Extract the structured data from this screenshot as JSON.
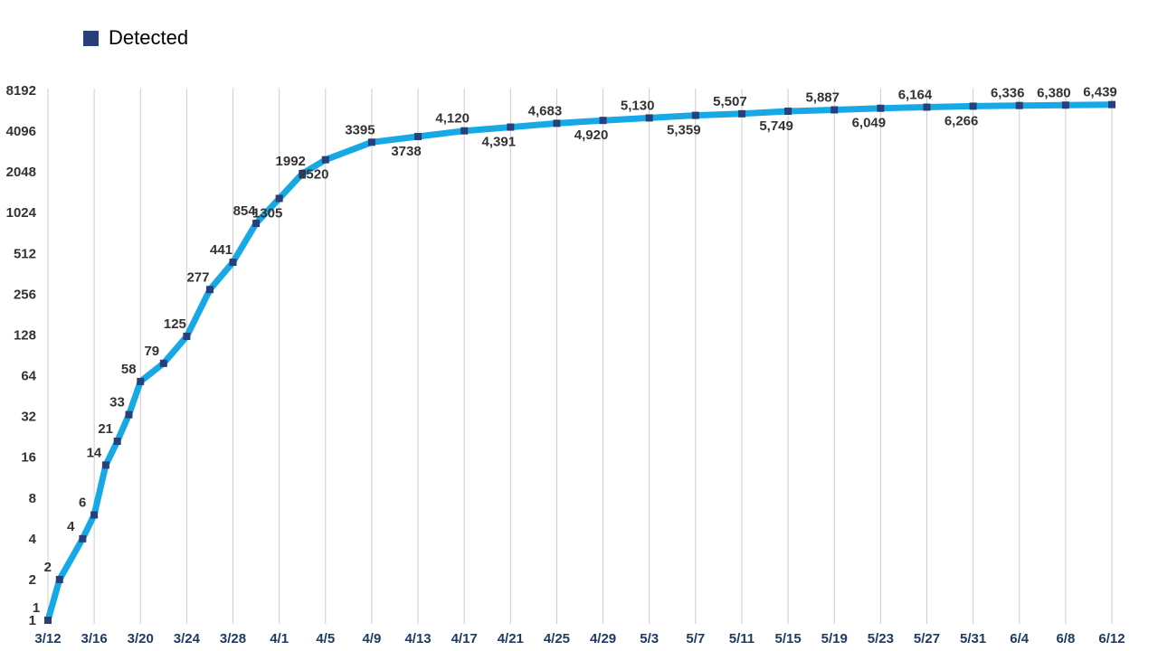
{
  "legend": {
    "label": "Detected"
  },
  "colors": {
    "line": "#17a9e6",
    "marker": "#27407a",
    "grid": "#cccccc",
    "x_tick_text": "#1f3a63",
    "y_tick_text": "#333333",
    "data_label_text": "#333333"
  },
  "chart_data": {
    "type": "line",
    "title": "",
    "xlabel": "",
    "ylabel": "",
    "yscale": "log2",
    "ylim": [
      1,
      8192
    ],
    "yticks": [
      "1",
      "2",
      "4",
      "8",
      "16",
      "32",
      "64",
      "128",
      "256",
      "512",
      "1024",
      "2048",
      "4096",
      "8192"
    ],
    "xticks": [
      "3/12",
      "3/16",
      "3/20",
      "3/24",
      "3/28",
      "4/1",
      "4/5",
      "4/9",
      "4/13",
      "4/17",
      "4/21",
      "4/25",
      "4/29",
      "5/3",
      "5/7",
      "5/11",
      "5/15",
      "5/19",
      "5/23",
      "5/27",
      "5/31",
      "6/4",
      "6/8",
      "6/12"
    ],
    "grid": "vertical",
    "legend_position": "top-left",
    "series": [
      {
        "name": "Detected",
        "points": [
          {
            "x": "3/12",
            "y": 1,
            "label": "1",
            "pos": "above"
          },
          {
            "x": "3/13",
            "y": 2,
            "label": "2",
            "pos": "above"
          },
          {
            "x": "3/15",
            "y": 4,
            "label": "4",
            "pos": "above"
          },
          {
            "x": "3/16",
            "y": 6,
            "label": "6",
            "pos": "above"
          },
          {
            "x": "3/17",
            "y": 14,
            "label": "14",
            "pos": "above"
          },
          {
            "x": "3/18",
            "y": 21,
            "label": "21",
            "pos": "above"
          },
          {
            "x": "3/19",
            "y": 33,
            "label": "33",
            "pos": "above"
          },
          {
            "x": "3/20",
            "y": 58,
            "label": "58",
            "pos": "above"
          },
          {
            "x": "3/22",
            "y": 79,
            "label": "79",
            "pos": "above"
          },
          {
            "x": "3/24",
            "y": 125,
            "label": "125",
            "pos": "above"
          },
          {
            "x": "3/26",
            "y": 277,
            "label": "277",
            "pos": "above"
          },
          {
            "x": "3/28",
            "y": 441,
            "label": "441",
            "pos": "above"
          },
          {
            "x": "3/30",
            "y": 854,
            "label": "854",
            "pos": "above"
          },
          {
            "x": "4/1",
            "y": 1305,
            "label": "1305",
            "pos": "below"
          },
          {
            "x": "4/3",
            "y": 1992,
            "label": "1992",
            "pos": "above"
          },
          {
            "x": "4/5",
            "y": 2520,
            "label": "2520",
            "pos": "below"
          },
          {
            "x": "4/9",
            "y": 3395,
            "label": "3395",
            "pos": "above"
          },
          {
            "x": "4/13",
            "y": 3738,
            "label": "3738",
            "pos": "below"
          },
          {
            "x": "4/17",
            "y": 4120,
            "label": "4,120",
            "pos": "above"
          },
          {
            "x": "4/21",
            "y": 4391,
            "label": "4,391",
            "pos": "below"
          },
          {
            "x": "4/25",
            "y": 4683,
            "label": "4,683",
            "pos": "above"
          },
          {
            "x": "4/29",
            "y": 4920,
            "label": "4,920",
            "pos": "below"
          },
          {
            "x": "5/3",
            "y": 5130,
            "label": "5,130",
            "pos": "above"
          },
          {
            "x": "5/7",
            "y": 5359,
            "label": "5,359",
            "pos": "below"
          },
          {
            "x": "5/11",
            "y": 5507,
            "label": "5,507",
            "pos": "above"
          },
          {
            "x": "5/15",
            "y": 5749,
            "label": "5,749",
            "pos": "below"
          },
          {
            "x": "5/19",
            "y": 5887,
            "label": "5,887",
            "pos": "above"
          },
          {
            "x": "5/23",
            "y": 6049,
            "label": "6,049",
            "pos": "below"
          },
          {
            "x": "5/27",
            "y": 6164,
            "label": "6,164",
            "pos": "above"
          },
          {
            "x": "5/31",
            "y": 6266,
            "label": "6,266",
            "pos": "below"
          },
          {
            "x": "6/4",
            "y": 6336,
            "label": "6,336",
            "pos": "above"
          },
          {
            "x": "6/8",
            "y": 6380,
            "label": "6,380",
            "pos": "above"
          },
          {
            "x": "6/12",
            "y": 6439,
            "label": "6,439",
            "pos": "above"
          }
        ]
      }
    ]
  }
}
